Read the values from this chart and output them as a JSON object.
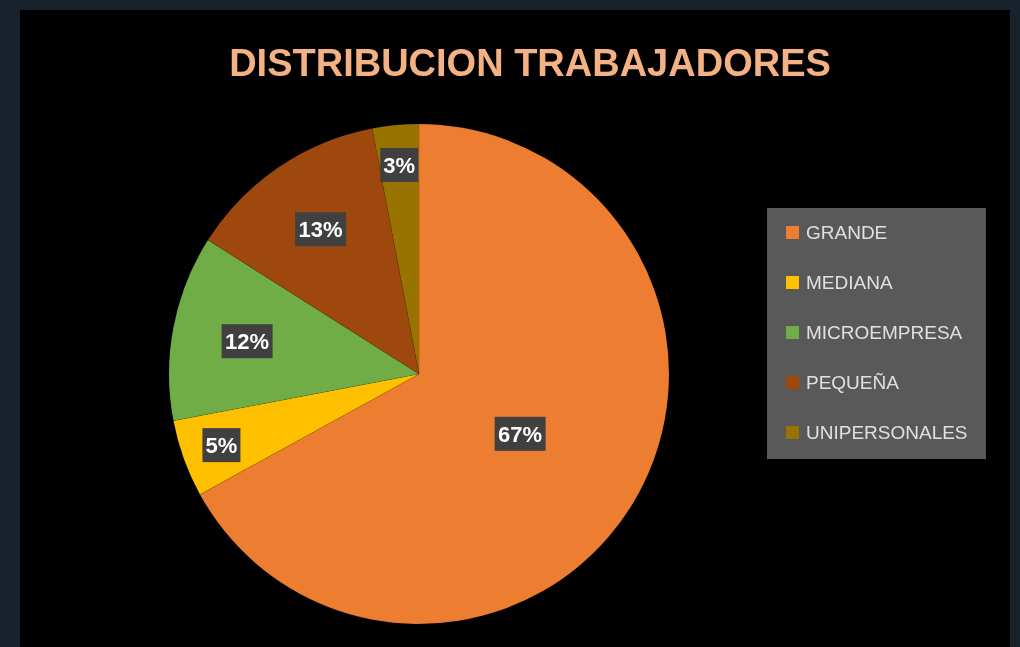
{
  "chart_data": {
    "type": "pie",
    "title": "DISTRIBUCION TRABAJADORES",
    "categories": [
      "GRANDE",
      "MEDIANA",
      "MICROEMPRESA",
      "PEQUEÑA",
      "UNIPERSONALES"
    ],
    "values": [
      67,
      5,
      12,
      13,
      3
    ],
    "colors": [
      "#ed7d31",
      "#ffc000",
      "#70ad47",
      "#9e480e",
      "#997300"
    ],
    "value_labels": [
      "67%",
      "5%",
      "12%",
      "13%",
      "3%"
    ],
    "legend": "right"
  }
}
